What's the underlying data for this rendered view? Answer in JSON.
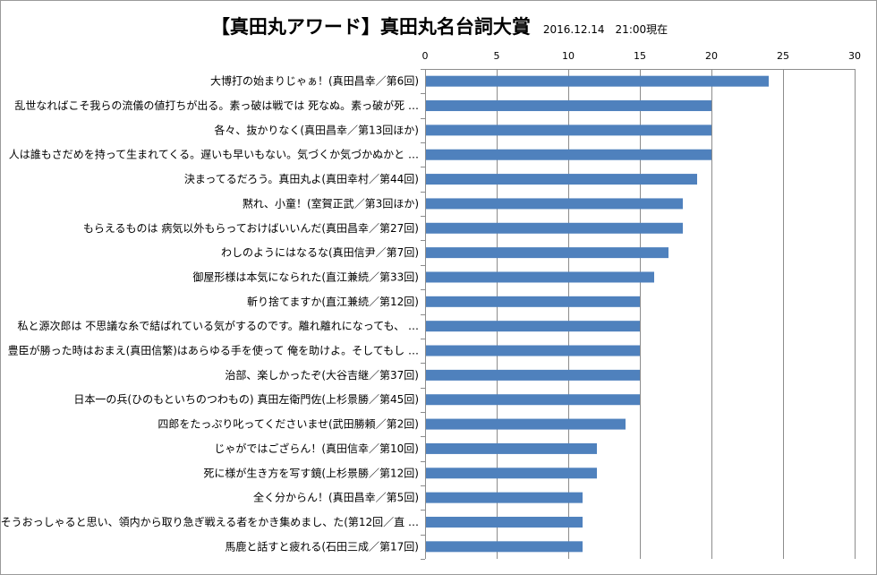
{
  "chart_data": {
    "type": "bar",
    "orientation": "horizontal",
    "title": "【真田丸アワード】真田丸名台詞大賞",
    "subtitle": "2016.12.14　21:00現在",
    "xlabel": "",
    "ylabel": "",
    "xlim": [
      0,
      30
    ],
    "ticks": [
      0,
      5,
      10,
      15,
      20,
      25,
      30
    ],
    "tick_labels": [
      "0",
      "5",
      "10",
      "15",
      "20",
      "25",
      "30"
    ],
    "axis_position": "top",
    "grid": true,
    "legend": "none",
    "bar_color": "#4f81bd",
    "categories": [
      "大博打の始まりじゃぁ！(真田昌幸／第6回)",
      "乱世なればこそ我らの流儀の値打ちが出る。素っ破は戦では 死なぬ。素っ破が死 …",
      "各々、抜かりなく(真田昌幸／第13回ほか)",
      "人は誰もさだめを持って生まれてくる。遅いも早いもない。気づくか気づかぬかと …",
      "決まってるだろう。真田丸よ(真田幸村／第44回)",
      "黙れ、小童！(室賀正武／第3回ほか)",
      "もらえるものは 病気以外もらっておけばいいんだ(真田昌幸／第27回)",
      "わしのようにはなるな(真田信尹／第7回)",
      "御屋形様は本気になられた(直江兼続／第33回)",
      "斬り捨てますか(直江兼続／第12回)",
      "私と源次郎は 不思議な糸で結ばれている気がするのです。離れ離れになっても、 …",
      "豊臣が勝った時はおまえ(真田信繁)はあらゆる手を使って 俺を助けよ。そしてもし …",
      "治部、楽しかったぞ(大谷吉継／第37回)",
      "日本一の兵(ひのもといちのつわもの) 真田左衛門佐(上杉景勝／第45回)",
      "四郎をたっぷり叱ってくださいませ(武田勝頼／第2回)",
      "じゃがではござらん！(真田信幸／第10回)",
      "死に様が生き方を写す鏡(上杉景勝／第12回)",
      "全く分からん！(真田昌幸／第5回)",
      "そうおっしゃると思い、領内から取り急ぎ戦える者をかき集めまし、た(第12回／直 …",
      "馬鹿と話すと疲れる(石田三成／第17回)"
    ],
    "values": [
      24,
      20,
      20,
      20,
      19,
      18,
      18,
      17,
      16,
      15,
      15,
      15,
      15,
      15,
      14,
      12,
      12,
      11,
      11,
      11
    ]
  }
}
